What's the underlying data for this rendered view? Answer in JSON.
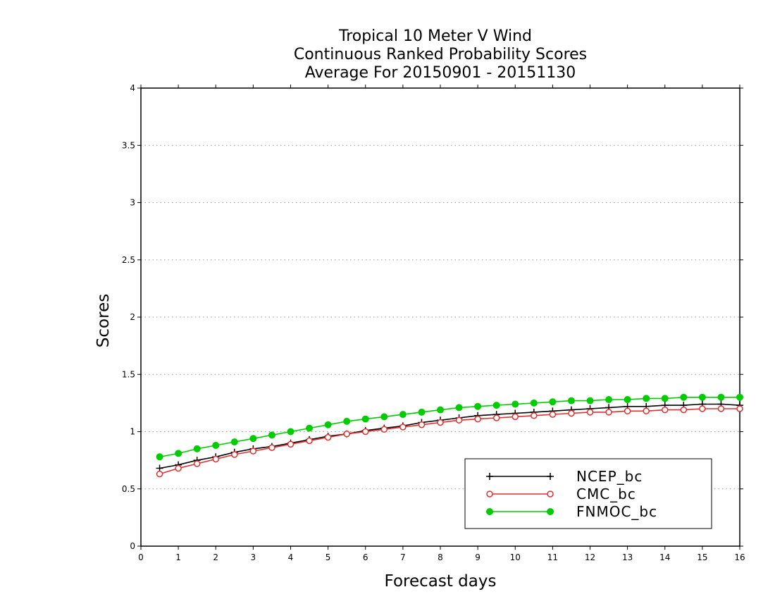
{
  "chart_data": {
    "type": "line",
    "title_lines": [
      "Tropical 10 Meter V Wind",
      "Continuous Ranked Probability Scores",
      "Average For 20150901 - 20151130"
    ],
    "xlabel": "Forecast days",
    "ylabel": "Scores",
    "xlim": [
      0,
      16
    ],
    "ylim": [
      0,
      4
    ],
    "x_ticks": [
      "0",
      "1",
      "2",
      "3",
      "4",
      "5",
      "6",
      "7",
      "8",
      "9",
      "10",
      "11",
      "12",
      "13",
      "14",
      "15",
      "16"
    ],
    "y_ticks": [
      "0",
      "0.5",
      "1",
      "1.5",
      "2",
      "2.5",
      "3",
      "3.5",
      "4"
    ],
    "grid": "horizontal dotted",
    "legend_position": "bottom-right",
    "x": [
      0.5,
      1,
      1.5,
      2,
      2.5,
      3,
      3.5,
      4,
      4.5,
      5,
      5.5,
      6,
      6.5,
      7,
      7.5,
      8,
      8.5,
      9,
      9.5,
      10,
      10.5,
      11,
      11.5,
      12,
      12.5,
      13,
      13.5,
      14,
      14.5,
      15,
      15.5,
      16
    ],
    "series": [
      {
        "name": "NCEP_bc",
        "color": "#000000",
        "marker": "plus",
        "values": [
          0.68,
          0.71,
          0.75,
          0.78,
          0.82,
          0.85,
          0.87,
          0.9,
          0.93,
          0.96,
          0.98,
          1.01,
          1.03,
          1.05,
          1.08,
          1.1,
          1.12,
          1.14,
          1.15,
          1.16,
          1.17,
          1.18,
          1.19,
          1.2,
          1.21,
          1.22,
          1.22,
          1.23,
          1.23,
          1.24,
          1.24,
          1.23
        ]
      },
      {
        "name": "CMC_bc",
        "color": "#e03030",
        "marker": "open-circle",
        "values": [
          0.63,
          0.68,
          0.72,
          0.76,
          0.8,
          0.83,
          0.86,
          0.89,
          0.92,
          0.95,
          0.98,
          1.0,
          1.02,
          1.04,
          1.06,
          1.08,
          1.1,
          1.11,
          1.12,
          1.13,
          1.14,
          1.15,
          1.16,
          1.17,
          1.17,
          1.18,
          1.18,
          1.19,
          1.19,
          1.2,
          1.2,
          1.2
        ]
      },
      {
        "name": "FNMOC_bc",
        "color": "#00cc00",
        "marker": "filled-circle",
        "values": [
          0.78,
          0.81,
          0.85,
          0.88,
          0.91,
          0.94,
          0.97,
          1.0,
          1.03,
          1.06,
          1.09,
          1.11,
          1.13,
          1.15,
          1.17,
          1.19,
          1.21,
          1.22,
          1.23,
          1.24,
          1.25,
          1.26,
          1.27,
          1.27,
          1.28,
          1.28,
          1.29,
          1.29,
          1.3,
          1.3,
          1.3,
          1.3
        ]
      }
    ]
  }
}
